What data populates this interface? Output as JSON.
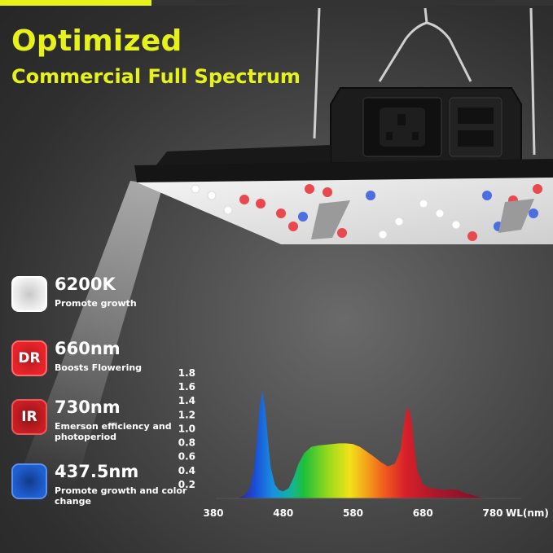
{
  "header": {
    "title_line1": "Optimized",
    "title_line2": "Commercial Full Spectrum",
    "accent_color": "#e6f21a"
  },
  "features": [
    {
      "badge": "",
      "value": "6200K",
      "description": "Promote growth",
      "color": "#ffffff"
    },
    {
      "badge": "DR",
      "value": "660nm",
      "description": "Boosts Flowering",
      "color": "#e8242a"
    },
    {
      "badge": "IR",
      "value": "730nm",
      "description": "Emerson efficiency and photoperiod",
      "color": "#c81e24"
    },
    {
      "badge": "",
      "value": "437.5nm",
      "description": "Promote growth and color change",
      "color": "#1f5fd0"
    }
  ],
  "chart_data": {
    "type": "area",
    "xlabel": "WL(nm)",
    "x_ticks": [
      "380",
      "480",
      "580",
      "680",
      "780"
    ],
    "y_ticks": [
      "0.2",
      "0.4",
      "0.6",
      "0.8",
      "1.0",
      "1.2",
      "1.4",
      "1.6",
      "1.8"
    ],
    "xlim": [
      380,
      780
    ],
    "ylim": [
      0,
      1.8
    ],
    "series": [
      {
        "x": [
          415,
          425,
          432,
          438,
          442,
          446,
          450,
          454,
          458,
          462,
          468,
          474,
          480,
          488,
          495,
          502,
          510,
          520,
          530,
          540,
          550,
          560,
          570,
          580,
          590,
          600,
          610,
          620,
          630,
          640,
          648,
          652,
          656,
          660,
          664,
          668,
          672,
          680,
          690,
          700,
          710,
          720,
          730,
          740,
          750,
          760,
          770
        ],
        "y": [
          0.0,
          0.05,
          0.15,
          0.4,
          0.8,
          1.3,
          1.55,
          1.3,
          0.85,
          0.45,
          0.2,
          0.12,
          0.1,
          0.15,
          0.3,
          0.5,
          0.65,
          0.74,
          0.76,
          0.77,
          0.78,
          0.79,
          0.79,
          0.78,
          0.74,
          0.67,
          0.6,
          0.52,
          0.46,
          0.5,
          0.7,
          1.0,
          1.25,
          1.3,
          1.1,
          0.7,
          0.4,
          0.2,
          0.15,
          0.14,
          0.12,
          0.13,
          0.12,
          0.08,
          0.05,
          0.02,
          0.0
        ]
      }
    ]
  }
}
